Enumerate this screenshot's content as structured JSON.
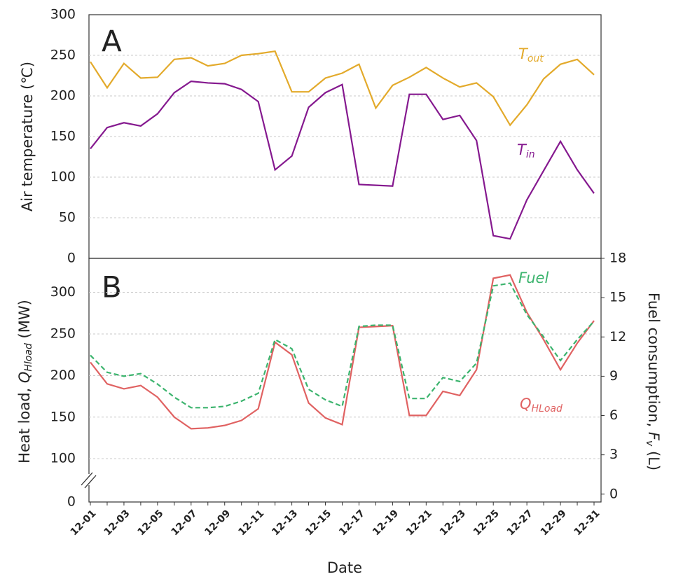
{
  "chart_data": [
    {
      "type": "line",
      "title": "A",
      "ylabel": "Air temperature (℃)",
      "ylim": [
        0,
        300
      ],
      "yticks": [
        0,
        50,
        100,
        150,
        200,
        250,
        300
      ],
      "grid": true,
      "series": [
        {
          "name": "T",
          "name_sub": "out",
          "color": "#e3aa2b",
          "values": [
            242,
            210,
            240,
            222,
            223,
            245,
            247,
            237,
            240,
            250,
            252,
            255,
            205,
            205,
            222,
            228,
            239,
            185,
            213,
            223,
            235,
            222,
            211,
            216,
            199,
            164,
            189,
            221,
            239,
            245,
            226
          ]
        },
        {
          "name": "T",
          "name_sub": "in",
          "color": "#85198f",
          "values": [
            135,
            161,
            167,
            163,
            178,
            204,
            218,
            216,
            215,
            208,
            193,
            109,
            126,
            186,
            204,
            214,
            91,
            90,
            89,
            202,
            202,
            171,
            176,
            145,
            28,
            24,
            72,
            108,
            144,
            109,
            80
          ]
        }
      ]
    },
    {
      "type": "line",
      "title": "B",
      "ylabel": {
        "main": "Heat load, ",
        "var": "Q",
        "sub": "Hload",
        "unit": " (MW)"
      },
      "y2label": {
        "main": "Fuel consumption, ",
        "var": "F",
        "sub": "v",
        "unit": " (L)"
      },
      "xlabel": "Date",
      "categories": [
        "12-01",
        null,
        "12-03",
        null,
        "12-05",
        null,
        "12-07",
        null,
        "12-09",
        null,
        "12-11",
        null,
        "12-13",
        null,
        "12-15",
        null,
        "12-17",
        null,
        "12-19",
        null,
        "12-21",
        null,
        "12-23",
        null,
        "12-25",
        null,
        "12-27",
        null,
        "12-29",
        null,
        "12-31"
      ],
      "ylim": [
        0,
        341
      ],
      "axis_break": [
        0,
        90
      ],
      "yticks": [
        0,
        100,
        150,
        200,
        250,
        300
      ],
      "grid": true,
      "y2lim": [
        -0.6,
        18
      ],
      "y2ticks": [
        0,
        3,
        6,
        9,
        12,
        15,
        18
      ],
      "series": [
        {
          "name": "Q",
          "name_sub": "HLoad",
          "color": "#e06262",
          "values": [
            216,
            190,
            184,
            188,
            174,
            150,
            136,
            137,
            140,
            146,
            160,
            240,
            225,
            167,
            149,
            141,
            258,
            259,
            260,
            152,
            152,
            181,
            176,
            207,
            317,
            321,
            276,
            243,
            207,
            239,
            266
          ]
        },
        {
          "name": "Fuel",
          "color": "#3cb46e",
          "dashed": true,
          "axis": "y2",
          "values": [
            10.6,
            9.3,
            9.0,
            9.2,
            8.4,
            7.4,
            6.6,
            6.6,
            6.7,
            7.1,
            7.7,
            11.8,
            11.1,
            8.0,
            7.2,
            6.7,
            12.8,
            12.9,
            12.9,
            7.3,
            7.3,
            8.9,
            8.6,
            10.0,
            15.9,
            16.1,
            13.7,
            12.0,
            10.2,
            11.8,
            13.2
          ]
        }
      ]
    }
  ]
}
